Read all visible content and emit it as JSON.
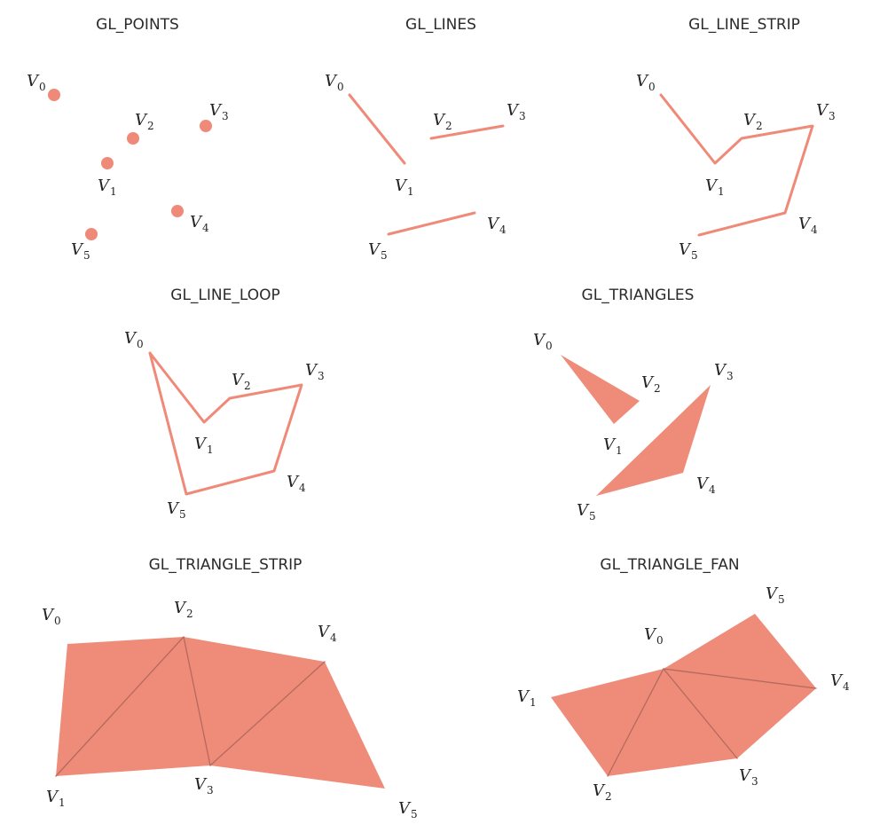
{
  "colors": {
    "accent": "#f08a78",
    "fill": "#ef8b79",
    "inner_edge": "#b46a5e",
    "text": "#2b2b2b"
  },
  "vertex_prefix": "V",
  "panels": [
    {
      "id": "points",
      "title": "GL_POINTS",
      "mode": "points",
      "vertices": [
        {
          "sub": "0"
        },
        {
          "sub": "1"
        },
        {
          "sub": "2"
        },
        {
          "sub": "3"
        },
        {
          "sub": "4"
        },
        {
          "sub": "5"
        }
      ]
    },
    {
      "id": "lines",
      "title": "GL_LINES",
      "mode": "lines",
      "vertices": [
        {
          "sub": "0"
        },
        {
          "sub": "1"
        },
        {
          "sub": "2"
        },
        {
          "sub": "3"
        },
        {
          "sub": "4"
        },
        {
          "sub": "5"
        }
      ]
    },
    {
      "id": "line-strip",
      "title": "GL_LINE_STRIP",
      "mode": "line_strip",
      "vertices": [
        {
          "sub": "0"
        },
        {
          "sub": "1"
        },
        {
          "sub": "2"
        },
        {
          "sub": "3"
        },
        {
          "sub": "4"
        },
        {
          "sub": "5"
        }
      ]
    },
    {
      "id": "line-loop",
      "title": "GL_LINE_LOOP",
      "mode": "line_loop",
      "vertices": [
        {
          "sub": "0"
        },
        {
          "sub": "1"
        },
        {
          "sub": "2"
        },
        {
          "sub": "3"
        },
        {
          "sub": "4"
        },
        {
          "sub": "5"
        }
      ]
    },
    {
      "id": "triangles",
      "title": "GL_TRIANGLES",
      "mode": "triangles",
      "vertices": [
        {
          "sub": "0"
        },
        {
          "sub": "1"
        },
        {
          "sub": "2"
        },
        {
          "sub": "3"
        },
        {
          "sub": "4"
        },
        {
          "sub": "5"
        }
      ]
    },
    {
      "id": "triangle-strip",
      "title": "GL_TRIANGLE_STRIP",
      "mode": "triangle_strip",
      "vertices": [
        {
          "sub": "0"
        },
        {
          "sub": "1"
        },
        {
          "sub": "2"
        },
        {
          "sub": "3"
        },
        {
          "sub": "4"
        },
        {
          "sub": "5"
        }
      ]
    },
    {
      "id": "triangle-fan",
      "title": "GL_TRIANGLE_FAN",
      "mode": "triangle_fan",
      "vertices": [
        {
          "sub": "0"
        },
        {
          "sub": "1"
        },
        {
          "sub": "2"
        },
        {
          "sub": "3"
        },
        {
          "sub": "4"
        },
        {
          "sub": "5"
        }
      ]
    }
  ]
}
